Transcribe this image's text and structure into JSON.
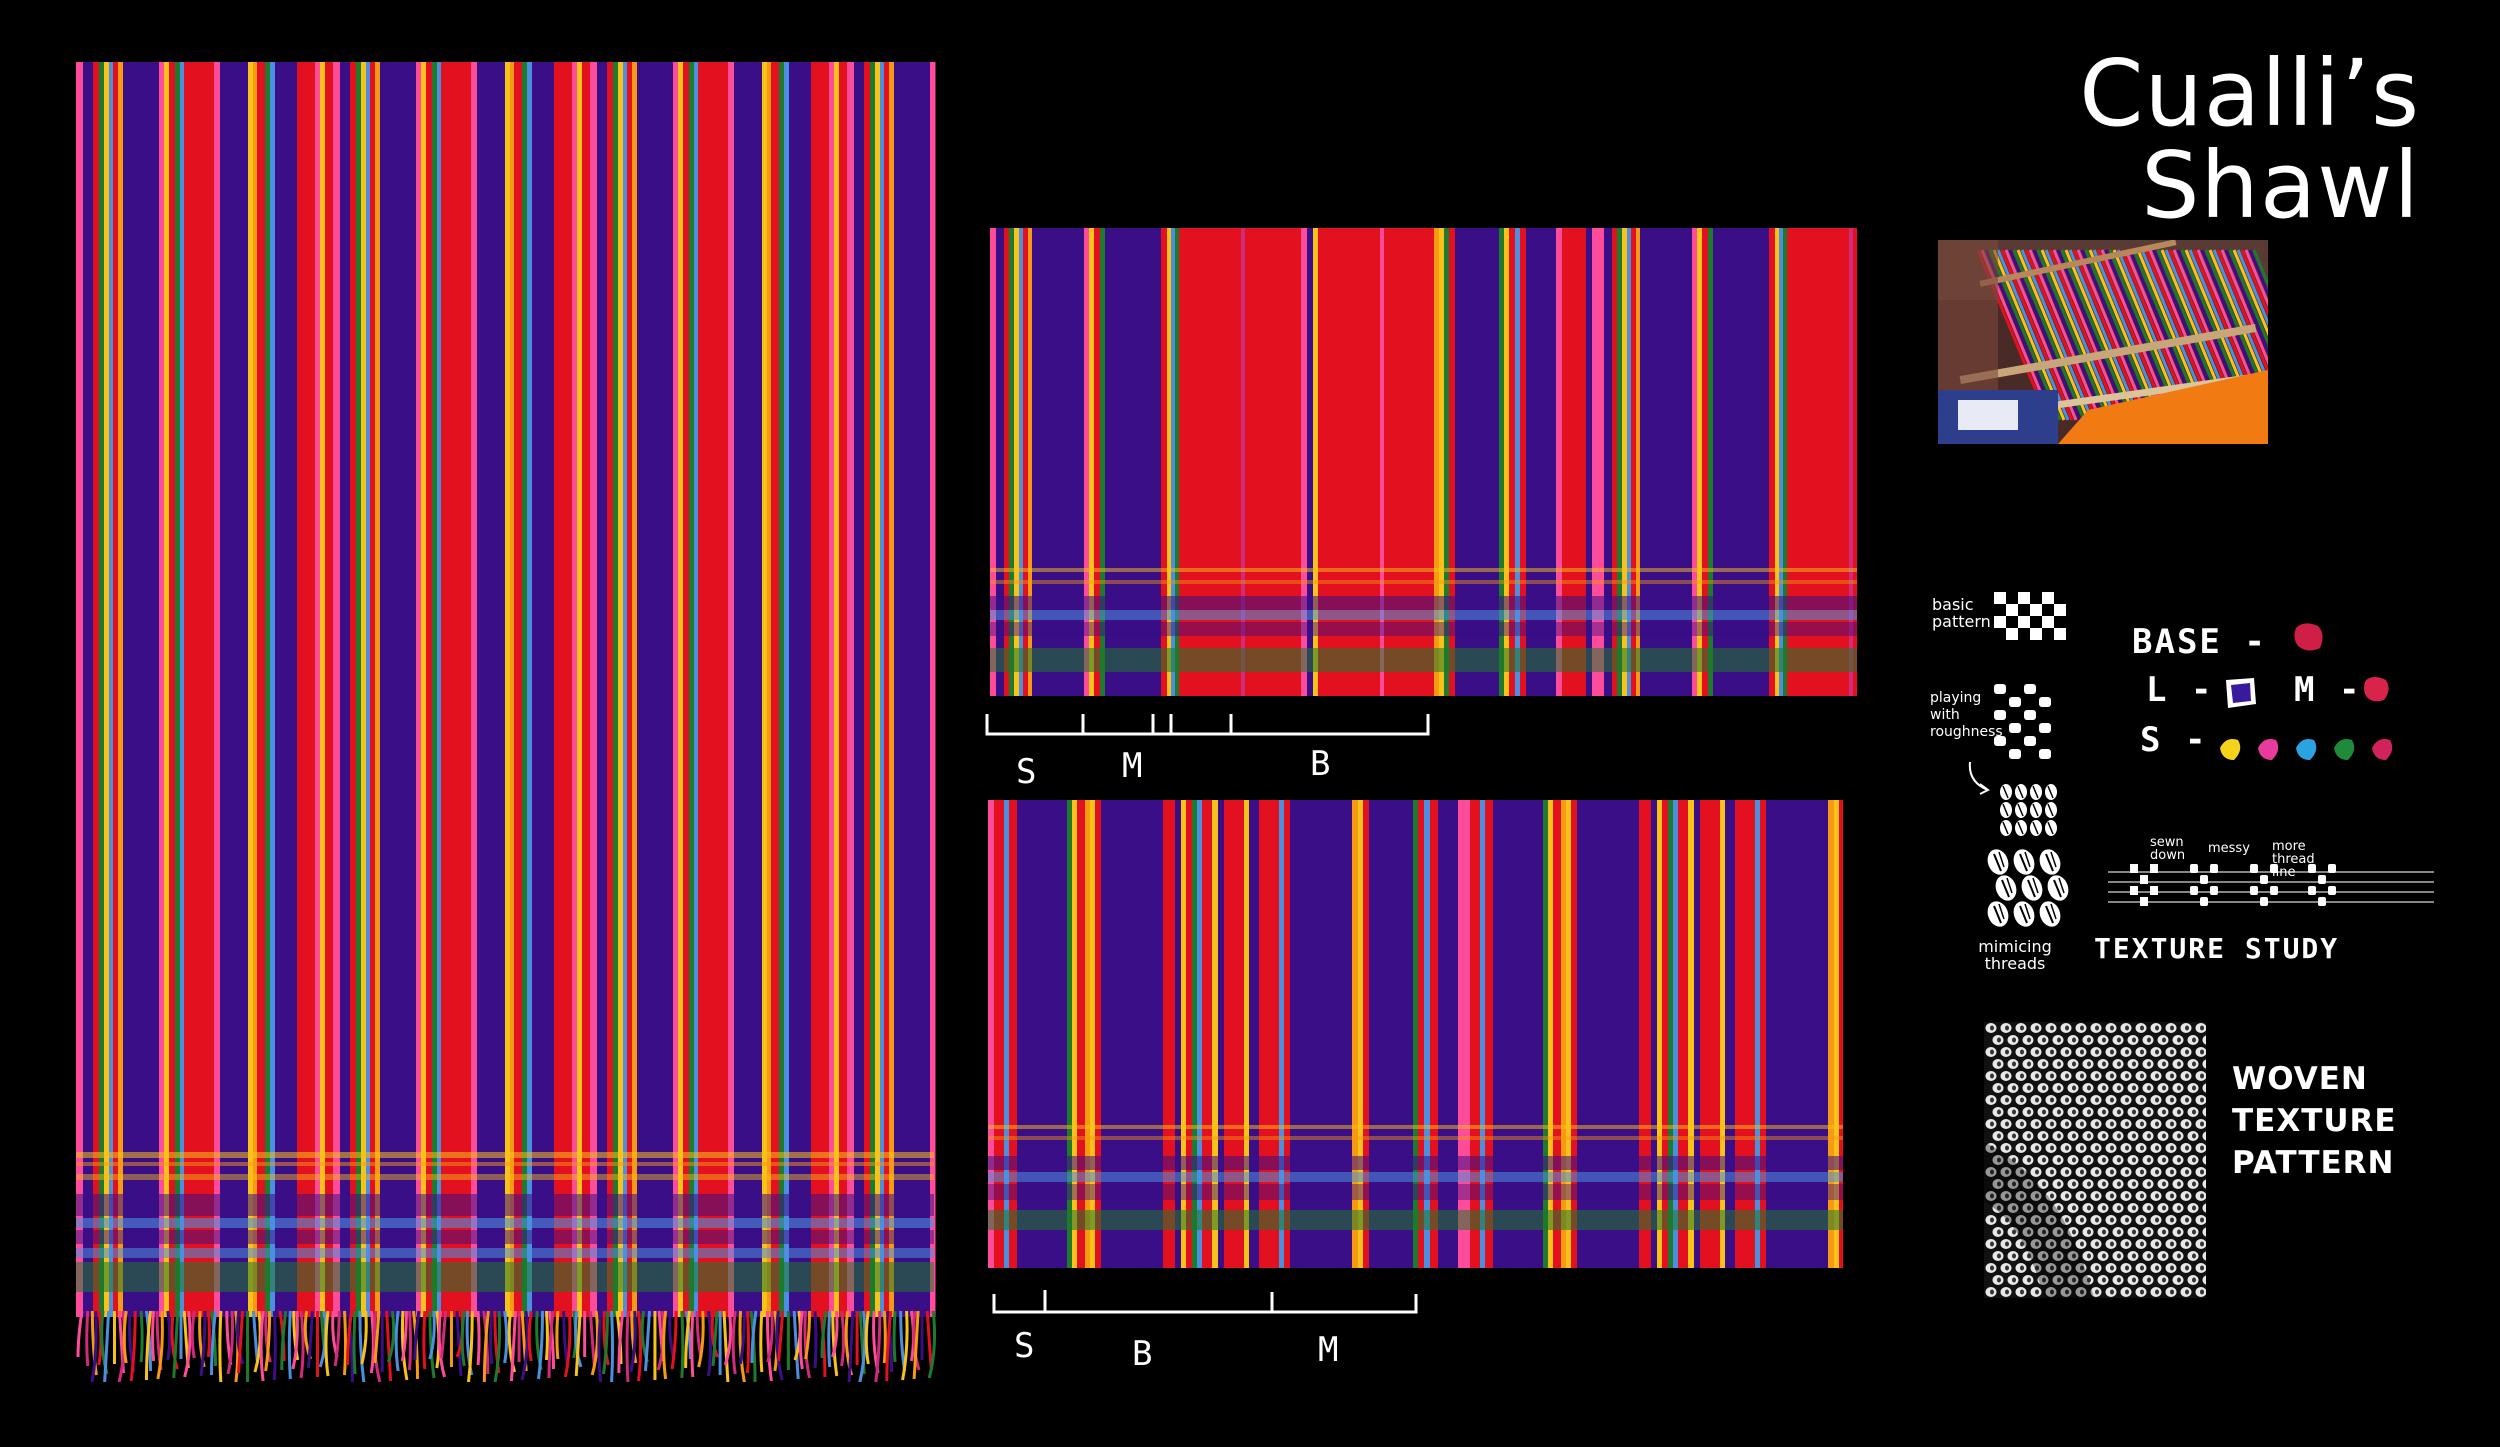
{
  "title": "Cualli’s Shawl",
  "scale_top": {
    "labels": [
      "S",
      "M",
      "B"
    ]
  },
  "scale_bottom": {
    "labels": [
      "S",
      "B",
      "M"
    ]
  },
  "texture_notes": {
    "basic_pattern": "basic pattern",
    "playing_with_roughness": "playing with roughness",
    "mimicing_threads": "mimicing threads",
    "sewn_down": "sewn down",
    "messy": "messy",
    "more_thread_line": "more thread line",
    "texture_study": "TEXTURE STUDY"
  },
  "legend": {
    "base_label": "BASE -",
    "l_label": "L -",
    "m_label": "M -",
    "s_label": "S -",
    "base_color": "#d01f46",
    "l_color": "#3a1a9c",
    "m_color": "#d8244a",
    "s_colors": [
      "#f5d31a",
      "#e93a9e",
      "#2aa3e0",
      "#1f8a3a",
      "#d0225f"
    ]
  },
  "woven_texture": [
    "WOVEN",
    "TEXTURE",
    "PATTERN"
  ],
  "colors": {
    "red": "#e3101f",
    "purple": "#3a0e86",
    "pink": "#ff4c9a",
    "yellow": "#f8c21a",
    "orange": "#f59a12",
    "green": "#1e7a2c",
    "blue": "#4b8fe0",
    "magenta": "#d02a7a"
  }
}
